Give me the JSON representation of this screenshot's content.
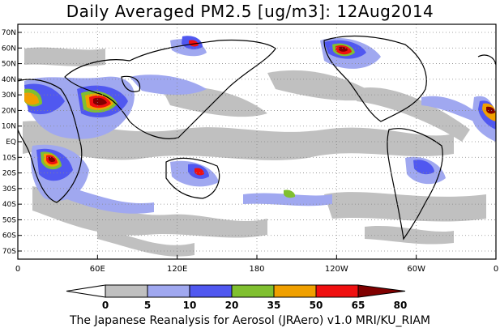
{
  "title": "Daily Averaged PM2.5 [ug/m3]: 12Aug2014",
  "footer": "The Japanese Reanalysis for Aerosol (JRAero) v1.0 MRI/KU_RIAM",
  "lat_labels": [
    "70N",
    "60N",
    "50N",
    "40N",
    "30N",
    "20N",
    "10N",
    "EQ",
    "10S",
    "20S",
    "30S",
    "40S",
    "50S",
    "60S",
    "70S"
  ],
  "lon_labels": [
    "0",
    "60E",
    "120E",
    "180",
    "120W",
    "60W",
    "0"
  ],
  "colorbar": {
    "ticks": [
      "0",
      "5",
      "10",
      "20",
      "35",
      "50",
      "65",
      "80"
    ],
    "colors": [
      "#ffffff",
      "#c0c0c0",
      "#a0a8f0",
      "#5058f0",
      "#80c030",
      "#f0a000",
      "#f01010",
      "#800000"
    ]
  }
}
